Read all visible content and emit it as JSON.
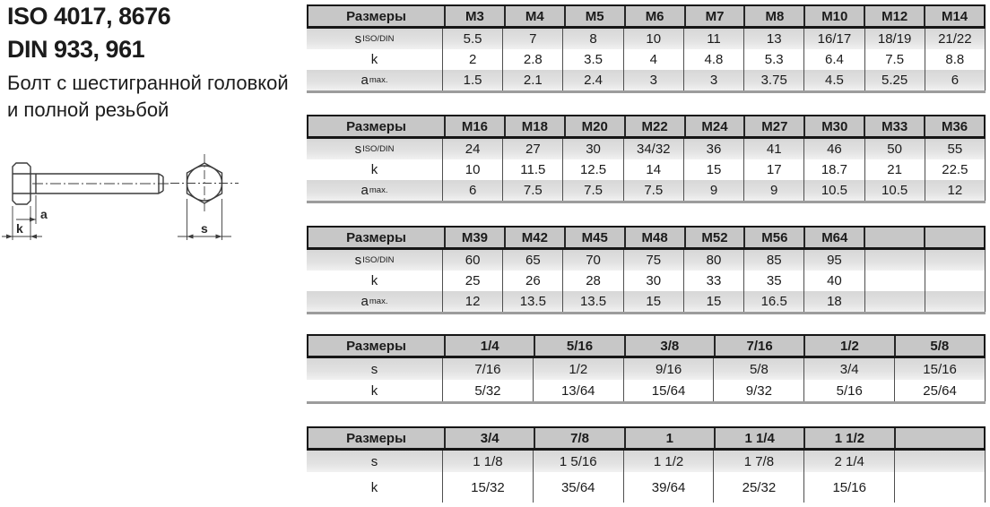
{
  "title_block": {
    "iso_line": "ISO 4017, 8676",
    "din_line": "DIN 933, 961",
    "description_line1": "Болт с шестигранной головкой",
    "description_line2": "и полной резьбой"
  },
  "drawing": {
    "dimension_labels": {
      "a": "a",
      "k": "k",
      "s": "s"
    }
  },
  "colors": {
    "table_header_bg": "#c7c7c7",
    "row_band_top": "#d7d7d7",
    "row_band_bottom": "#f1f1f1",
    "table_border": "#161616",
    "cell_separator": "#4f4f4f",
    "table_shadow": "#9c9c9c",
    "drawing_line": "#3c3c3c",
    "text": "#1b1b1b"
  },
  "tables": [
    {
      "name": "metric-m3-m14",
      "header_label": "Размеры",
      "columns": [
        "M3",
        "M4",
        "M5",
        "M6",
        "M7",
        "M8",
        "M10",
        "M12",
        "M14"
      ],
      "rows": [
        {
          "label": "s",
          "label_sub": "ISO/DIN",
          "values": [
            "5.5",
            "7",
            "8",
            "10",
            "11",
            "13",
            "16/17",
            "18/19",
            "21/22"
          ]
        },
        {
          "label": "k",
          "label_sub": "",
          "values": [
            "2",
            "2.8",
            "3.5",
            "4",
            "4.8",
            "5.3",
            "6.4",
            "7.5",
            "8.8"
          ]
        },
        {
          "label": "a",
          "label_sub": "max.",
          "values": [
            "1.5",
            "2.1",
            "2.4",
            "3",
            "3",
            "3.75",
            "4.5",
            "5.25",
            "6"
          ]
        }
      ]
    },
    {
      "name": "metric-m16-m36",
      "header_label": "Размеры",
      "columns": [
        "M16",
        "M18",
        "M20",
        "M22",
        "M24",
        "M27",
        "M30",
        "M33",
        "M36"
      ],
      "rows": [
        {
          "label": "s",
          "label_sub": "ISO/DIN",
          "values": [
            "24",
            "27",
            "30",
            "34/32",
            "36",
            "41",
            "46",
            "50",
            "55"
          ]
        },
        {
          "label": "k",
          "label_sub": "",
          "values": [
            "10",
            "11.5",
            "12.5",
            "14",
            "15",
            "17",
            "18.7",
            "21",
            "22.5"
          ]
        },
        {
          "label": "a",
          "label_sub": "max.",
          "values": [
            "6",
            "7.5",
            "7.5",
            "7.5",
            "9",
            "9",
            "10.5",
            "10.5",
            "12"
          ]
        }
      ]
    },
    {
      "name": "metric-m39-m64",
      "header_label": "Размеры",
      "columns": [
        "M39",
        "M42",
        "M45",
        "M48",
        "M52",
        "M56",
        "M64",
        "",
        ""
      ],
      "rows": [
        {
          "label": "s",
          "label_sub": "ISO/DIN",
          "values": [
            "60",
            "65",
            "70",
            "75",
            "80",
            "85",
            "95",
            "",
            ""
          ]
        },
        {
          "label": "k",
          "label_sub": "",
          "values": [
            "25",
            "26",
            "28",
            "30",
            "33",
            "35",
            "40",
            "",
            ""
          ]
        },
        {
          "label": "a",
          "label_sub": "max.",
          "values": [
            "12",
            "13.5",
            "13.5",
            "15",
            "15",
            "16.5",
            "18",
            "",
            ""
          ]
        }
      ]
    },
    {
      "name": "inch-1-4-to-5-8",
      "header_label": "Размеры",
      "columns": [
        "1/4",
        "5/16",
        "3/8",
        "7/16",
        "1/2",
        "5/8"
      ],
      "rows": [
        {
          "label": "s",
          "label_sub": "",
          "values": [
            "7/16",
            "1/2",
            "9/16",
            "5/8",
            "3/4",
            "15/16"
          ]
        },
        {
          "label": "k",
          "label_sub": "",
          "values": [
            "5/32",
            "13/64",
            "15/64",
            "9/32",
            "5/16",
            "25/64"
          ]
        }
      ]
    },
    {
      "name": "inch-3-4-to-1-1-2",
      "header_label": "Размеры",
      "columns": [
        "3/4",
        "7/8",
        "1",
        "1 1/4",
        "1 1/2",
        ""
      ],
      "rows": [
        {
          "label": "s",
          "label_sub": "",
          "values": [
            "1 1/8",
            "1 5/16",
            "1 1/2",
            "1 7/8",
            "2 1/4",
            ""
          ]
        },
        {
          "label": "k",
          "label_sub": "",
          "values": [
            "15/32",
            "35/64",
            "39/64",
            "25/32",
            "15/16",
            ""
          ]
        }
      ]
    }
  ]
}
